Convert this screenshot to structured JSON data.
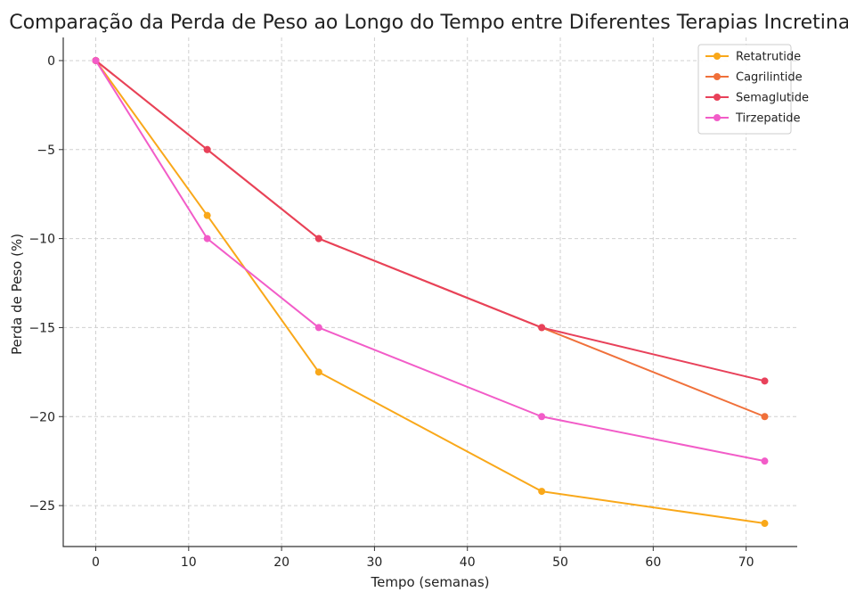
{
  "chart_data": {
    "type": "line",
    "title": "Comparação da Perda de Peso ao Longo do Tempo entre Diferentes Terapias Incretinas",
    "xlabel": "Tempo (semanas)",
    "ylabel": "Perda de Peso (%)",
    "xlim": [
      -3.5,
      75.5
    ],
    "ylim": [
      -27.3,
      1.3
    ],
    "xticks": [
      0,
      10,
      20,
      30,
      40,
      50,
      60,
      70
    ],
    "yticks": [
      0,
      -5,
      -10,
      -15,
      -20,
      -25
    ],
    "x": [
      0,
      12,
      24,
      48,
      72
    ],
    "grid": true,
    "legend_position": "top-right",
    "series": [
      {
        "name": "Retatrutide",
        "color": "#f9a81a",
        "values": [
          0,
          -8.7,
          -17.5,
          -24.2,
          -26
        ]
      },
      {
        "name": "Cagrilintide",
        "color": "#f0703a",
        "values": [
          0,
          -5,
          -10,
          -15,
          -20
        ]
      },
      {
        "name": "Semaglutide",
        "color": "#e8415a",
        "values": [
          0,
          -5,
          -10,
          -15,
          -18
        ]
      },
      {
        "name": "Tirzepatide",
        "color": "#f25cc8",
        "values": [
          0,
          -10,
          -15,
          -20,
          -22.5
        ]
      }
    ]
  }
}
